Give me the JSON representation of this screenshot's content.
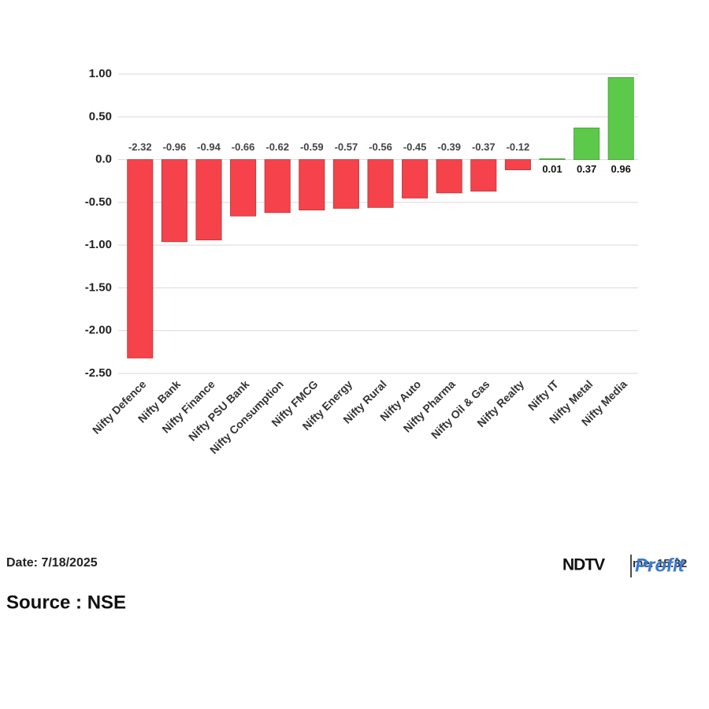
{
  "chart_data": {
    "type": "bar",
    "categories": [
      "Nifty Defence",
      "Nifty Bank",
      "Nifty Finance",
      "Nifty PSU Bank",
      "Nifty Consumption",
      "Nifty FMCG",
      "Nifty Energy",
      "Nifty Rural",
      "Nifty Auto",
      "Nifty Pharma",
      "Nifty Oil & Gas",
      "Nifty Realty",
      "Nifty IT",
      "Nifty Metal",
      "Nifty Media"
    ],
    "values": [
      -2.32,
      -0.96,
      -0.94,
      -0.66,
      -0.62,
      -0.59,
      -0.57,
      -0.56,
      -0.45,
      -0.39,
      -0.37,
      -0.12,
      0.01,
      0.37,
      0.96
    ],
    "color_negative": "#f5424b",
    "color_positive": "#5cc94a",
    "ylim": [
      -2.5,
      1.0
    ],
    "yticks": [
      {
        "value": 1.0,
        "label": "1.00"
      },
      {
        "value": 0.5,
        "label": "0.50"
      },
      {
        "value": 0,
        "label": "0.0"
      },
      {
        "value": -0.5,
        "label": "-0.50"
      },
      {
        "value": -1.0,
        "label": "-1.00"
      },
      {
        "value": -1.5,
        "label": "-1.50"
      },
      {
        "value": -2.0,
        "label": "-2.00"
      },
      {
        "value": -2.5,
        "label": "-2.50"
      }
    ],
    "grid": true
  },
  "footer": {
    "date": "Date: 7/18/2025",
    "source": "Source : NSE",
    "time": "Time: 15:32",
    "logo_left": "NDTV",
    "logo_right": "Profit"
  }
}
